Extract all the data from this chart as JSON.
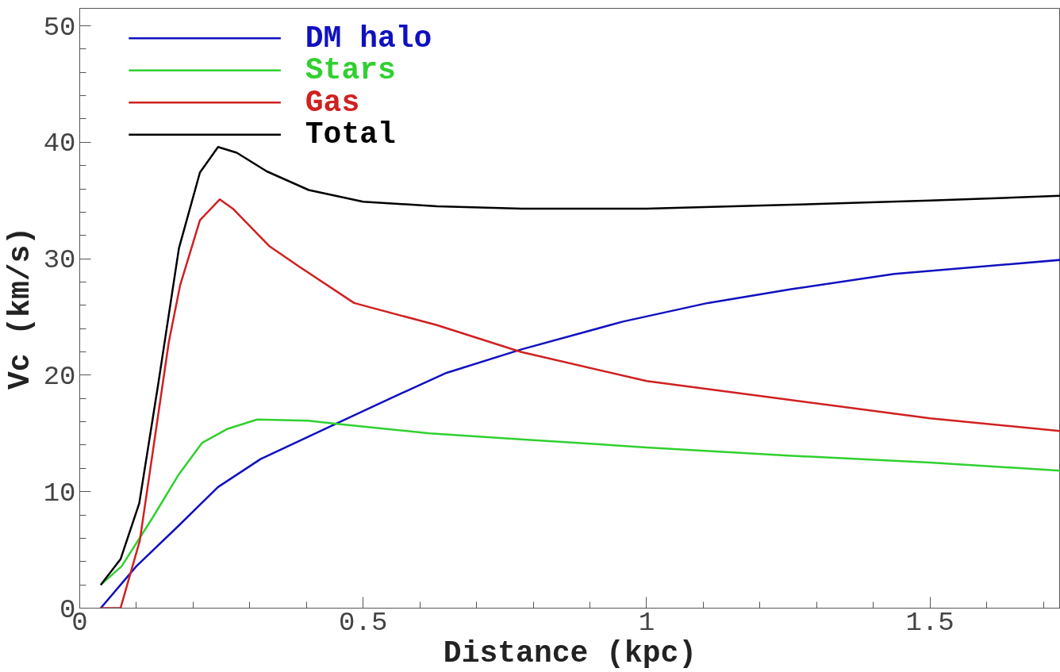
{
  "chart_data": {
    "type": "line",
    "xlabel": "Distance (kpc)",
    "ylabel": "Vc (km/s)",
    "xlim": [
      0,
      1.73
    ],
    "ylim": [
      0,
      51.5
    ],
    "xticks": [
      0,
      {
        "value": 0.5,
        "label": "0.5"
      },
      1,
      {
        "value": 1.5,
        "label": "1.5"
      }
    ],
    "yticks": [
      0,
      10,
      20,
      30,
      40,
      50
    ],
    "grid": false,
    "legend": "top left",
    "line_style": "solid",
    "series": [
      {
        "name": "DM halo",
        "color": "#1010c0",
        "x": [
          0.037,
          0.1,
          0.175,
          0.244,
          0.319,
          0.446,
          0.561,
          0.647,
          0.778,
          0.958,
          1.108,
          1.257,
          1.437,
          1.73
        ],
        "values": [
          0,
          3.6,
          7.1,
          10.4,
          12.8,
          15.7,
          18.3,
          20.2,
          22.2,
          24.6,
          26.2,
          27.4,
          28.7,
          29.9
        ]
      },
      {
        "name": "Stars",
        "color": "#30d030",
        "x": [
          0.037,
          0.074,
          0.129,
          0.175,
          0.216,
          0.261,
          0.313,
          0.403,
          0.457,
          0.618,
          0.778,
          1.0,
          1.25,
          1.5,
          1.73
        ],
        "values": [
          2.0,
          3.6,
          7.8,
          11.5,
          14.2,
          15.4,
          16.2,
          16.1,
          15.8,
          15.0,
          14.5,
          13.8,
          13.1,
          12.5,
          11.8
        ]
      },
      {
        "name": "Gas",
        "color": "#d02020",
        "x": [
          0.037,
          0.072,
          0.106,
          0.157,
          0.177,
          0.212,
          0.247,
          0.27,
          0.334,
          0.385,
          0.484,
          0.63,
          0.778,
          1.0,
          1.25,
          1.5,
          1.73
        ],
        "values": [
          0,
          0,
          5.8,
          22.8,
          27.7,
          33.3,
          35.1,
          34.3,
          31.1,
          29.4,
          26.2,
          24.3,
          22.0,
          19.5,
          17.9,
          16.3,
          15.2
        ]
      },
      {
        "name": "Total",
        "color": "#000000",
        "x": [
          0.037,
          0.072,
          0.105,
          0.138,
          0.175,
          0.212,
          0.244,
          0.277,
          0.33,
          0.404,
          0.5,
          0.63,
          0.78,
          1.0,
          1.23,
          1.5,
          1.73
        ],
        "values": [
          2.0,
          4.2,
          9.0,
          19.1,
          30.9,
          37.4,
          39.6,
          39.1,
          37.5,
          35.9,
          34.9,
          34.5,
          34.3,
          34.3,
          34.6,
          35.0,
          35.4
        ]
      }
    ]
  }
}
